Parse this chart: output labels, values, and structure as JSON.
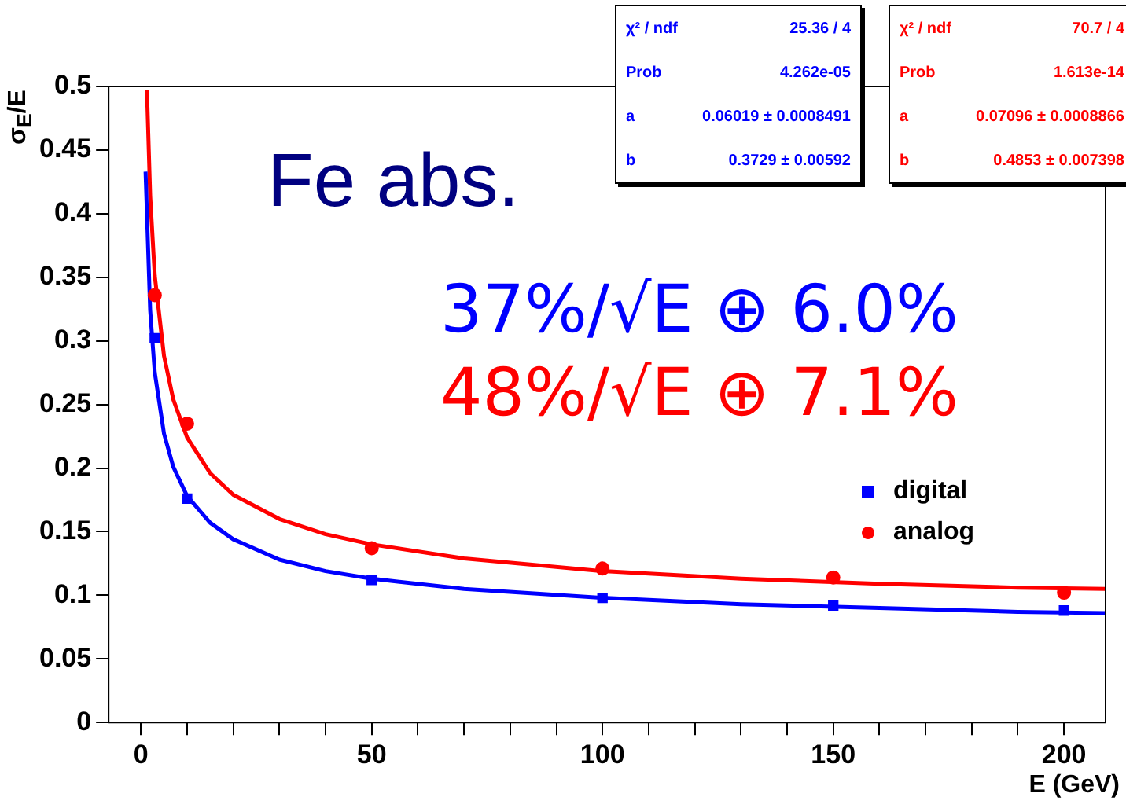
{
  "chart_data": {
    "type": "scatter",
    "xlabel": "E (GeV)",
    "ylabel": "σ$_{E}$/E",
    "annotations": [
      "Fe abs.",
      "37%/√E ⊕ 6.0%",
      "48%/√E ⊕ 7.1%",
      "χ² / ndf",
      "25.36 / 4",
      "Prob",
      "4.262e-05",
      "a",
      "0.06019 ± 0.0008491",
      "b",
      "0.3729 ± 0.00592",
      "χ² / ndf",
      "70.7 / 4",
      "Prob",
      "1.613e-14",
      "a",
      "0.07096 ± 0.0008866",
      "b",
      "0.4853 ± 0.007398"
    ],
    "series": [
      {
        "name": "digital",
        "marker": "square",
        "color": "#0000ff",
        "x": [
          3,
          10,
          50,
          100,
          150,
          200
        ],
        "values": [
          0.302,
          0.176,
          0.112,
          0.098,
          0.092,
          0.088
        ]
      },
      {
        "name": "analog",
        "marker": "circle",
        "color": "#ff0000",
        "x": [
          3,
          10,
          50,
          100,
          150,
          200
        ],
        "values": [
          0.336,
          0.235,
          0.137,
          0.121,
          0.114,
          0.102
        ]
      },
      {
        "type": "line",
        "marker": "none",
        "color": "#0000ff",
        "x": [
          1,
          2,
          3,
          5,
          7,
          10,
          15,
          20,
          30,
          40,
          50,
          70,
          100,
          130,
          160,
          190,
          209
        ],
        "values": [
          0.433,
          0.324,
          0.275,
          0.227,
          0.201,
          0.178,
          0.157,
          0.144,
          0.128,
          0.119,
          0.113,
          0.105,
          0.098,
          0.093,
          0.09,
          0.087,
          0.086
        ]
      },
      {
        "type": "line",
        "marker": "none",
        "color": "#ff0000",
        "x": [
          1.3,
          2,
          3,
          5,
          7,
          10,
          15,
          20,
          30,
          40,
          50,
          70,
          100,
          130,
          160,
          190,
          209
        ],
        "values": [
          0.497,
          0.414,
          0.351,
          0.288,
          0.254,
          0.224,
          0.196,
          0.179,
          0.16,
          0.148,
          0.14,
          0.129,
          0.119,
          0.113,
          0.109,
          0.106,
          0.105
        ]
      }
    ],
    "xlim": [
      -7,
      209
    ],
    "ylim": [
      0,
      0.5
    ],
    "xticks": [
      0,
      {
        "value": 10,
        "label": null
      },
      {
        "value": 20,
        "label": null
      },
      {
        "value": 30,
        "label": null
      },
      {
        "value": 40,
        "label": null
      },
      50,
      {
        "value": 60,
        "label": null
      },
      {
        "value": 70,
        "label": null
      },
      {
        "value": 80,
        "label": null
      },
      {
        "value": 90,
        "label": null
      },
      100,
      {
        "value": 110,
        "label": null
      },
      {
        "value": 120,
        "label": null
      },
      {
        "value": 130,
        "label": null
      },
      {
        "value": 140,
        "label": null
      },
      150,
      {
        "value": 160,
        "label": null
      },
      {
        "value": 170,
        "label": null
      },
      {
        "value": 180,
        "label": null
      },
      {
        "value": 190,
        "label": null
      },
      200
    ],
    "yticks": [
      0,
      0.05,
      0.1,
      0.15,
      0.2,
      0.25,
      0.3,
      0.35,
      0.4,
      0.45,
      0.5
    ],
    "grid": false,
    "legend": "right",
    "line_style": "solid"
  }
}
